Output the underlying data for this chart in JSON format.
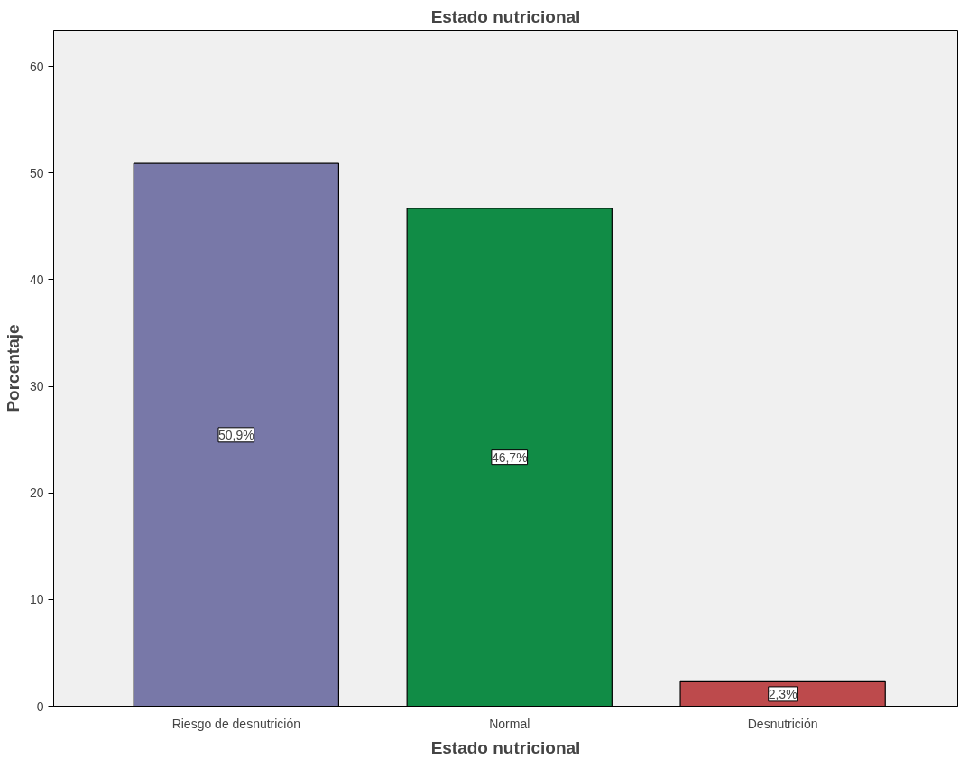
{
  "chart_data": {
    "type": "bar",
    "title": "Estado nutricional",
    "xlabel": "Estado nutricional",
    "ylabel": "Porcentaje",
    "categories": [
      "Riesgo de desnutrición",
      "Normal",
      "Desnutrición"
    ],
    "values": [
      50.9,
      46.7,
      2.3
    ],
    "colors": [
      "#7878a8",
      "#118c46",
      "#bd4a4c"
    ],
    "value_labels": [
      "50,9%",
      "46,7%",
      "2,3%"
    ],
    "ylim": [
      0,
      63.4
    ],
    "yticks": [
      0,
      10,
      20,
      30,
      40,
      50,
      60
    ],
    "grid": false
  }
}
